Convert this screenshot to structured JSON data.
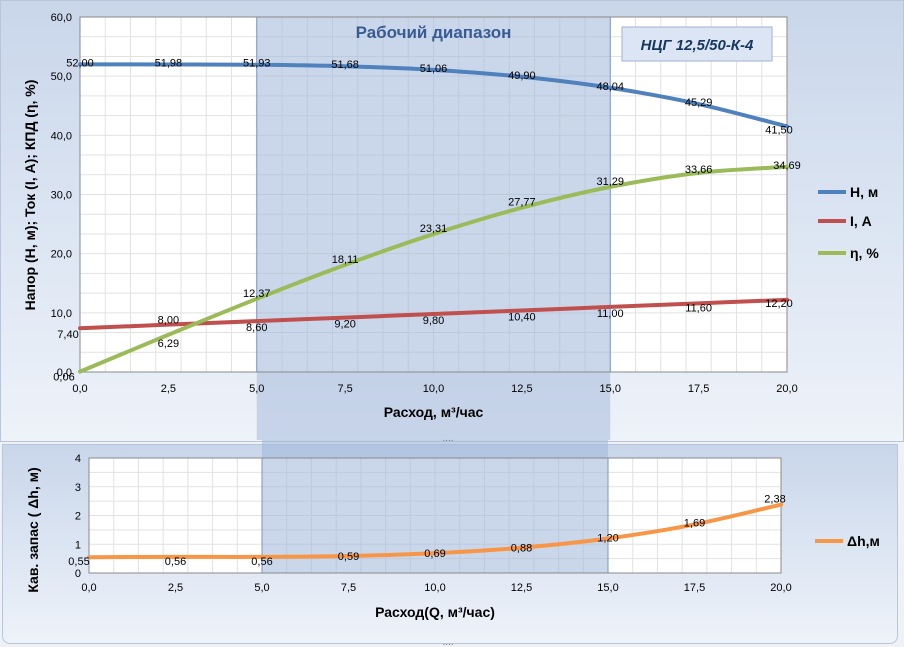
{
  "chart_data": [
    {
      "type": "line",
      "title": "НЦГ 12,5/50-К-4",
      "band_label": "Рабочий диапазон",
      "band": [
        5.0,
        15.0
      ],
      "xlabel": "Расход, м³/час",
      "ylabel": "Напор (Н, м); Ток (I, А); КПД (η, %)",
      "xlim": [
        0,
        20
      ],
      "ylim": [
        0,
        60
      ],
      "x_ticks": [
        "0,0",
        "2,5",
        "5,0",
        "7,5",
        "10,0",
        "12,5",
        "15,0",
        "17,5",
        "20,0"
      ],
      "y_ticks": [
        "0,0",
        "10,0",
        "20,0",
        "30,0",
        "40,0",
        "50,0",
        "60,0"
      ],
      "grid": true,
      "legend": "right",
      "x": [
        0,
        2.5,
        5,
        7.5,
        10,
        12.5,
        15,
        17.5,
        20
      ],
      "series": [
        {
          "name": "Н, м",
          "color": "#4f81bd",
          "values": [
            52.0,
            51.98,
            51.93,
            51.68,
            51.06,
            49.9,
            48.04,
            45.29,
            41.5
          ],
          "labels": [
            "52,00",
            "51,98",
            "51,93",
            "51,68",
            "51,06",
            "49,90",
            "48,04",
            "45,29",
            "41,50"
          ]
        },
        {
          "name": "I, А",
          "color": "#c0504d",
          "values": [
            7.4,
            8.0,
            8.6,
            9.2,
            9.8,
            10.4,
            11.0,
            11.6,
            12.2
          ],
          "labels": [
            "7,40",
            "8,00",
            "8,60",
            "9,20",
            "9,80",
            "10,40",
            "11,00",
            "11,60",
            "12,20"
          ]
        },
        {
          "name": "η, %",
          "color": "#9bbb59",
          "values": [
            0.06,
            6.29,
            12.37,
            18.11,
            23.31,
            27.77,
            31.29,
            33.66,
            34.69
          ],
          "labels": [
            "0,06",
            "6,29",
            "12,37",
            "18,11",
            "23,31",
            "27,77",
            "31,29",
            "33,66",
            "34,69"
          ]
        }
      ]
    },
    {
      "type": "line",
      "title": "",
      "band": [
        5.0,
        15.0
      ],
      "xlabel": "Расход(Q, м³/час)",
      "ylabel": "Кав. запас ( Δh, м)",
      "xlim": [
        0,
        20
      ],
      "ylim": [
        0,
        4
      ],
      "x_ticks": [
        "0,0",
        "2,5",
        "5,0",
        "7,5",
        "10,0",
        "12,5",
        "15,0",
        "17,5",
        "20,0"
      ],
      "y_ticks": [
        "0",
        "1",
        "2",
        "3",
        "4"
      ],
      "grid": true,
      "legend": "right",
      "x": [
        0,
        2.5,
        5,
        7.5,
        10,
        12.5,
        15,
        17.5,
        20
      ],
      "series": [
        {
          "name": "Δh,м",
          "color": "#f79646",
          "values": [
            0.55,
            0.56,
            0.56,
            0.59,
            0.69,
            0.88,
            1.2,
            1.69,
            2.38
          ],
          "labels": [
            "0,55",
            "0,56",
            "0,56",
            "0,59",
            "0,69",
            "0,88",
            "1,20",
            "1,69",
            "2,38"
          ]
        }
      ]
    }
  ]
}
